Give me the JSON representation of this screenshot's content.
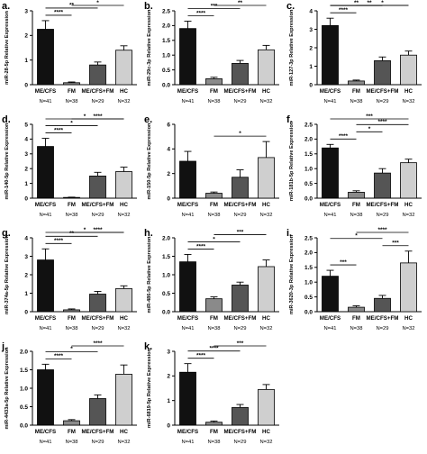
{
  "figure": {
    "categories": [
      "ME/CFS",
      "FM",
      "ME/CFS+FM",
      "HC"
    ],
    "sample_sizes": [
      "N=41",
      "N=38",
      "N=29",
      "N=32"
    ],
    "bar_colors": [
      "#111111",
      "#8a8a8a",
      "#555555",
      "#cfcfcf"
    ]
  },
  "chart_data": [
    {
      "type": "bar",
      "panel": "a.",
      "ylabel": "miR-28-5p Relative Expression",
      "categories": [
        "ME/CFS",
        "FM",
        "ME/CFS+FM",
        "HC"
      ],
      "values": [
        2.25,
        0.08,
        0.8,
        1.4
      ],
      "errors": [
        0.35,
        0.03,
        0.12,
        0.18
      ],
      "ylim": [
        0,
        3
      ],
      "yticks": [
        "0",
        "1",
        "2",
        "3"
      ],
      "significance": [
        {
          "from": 0,
          "to": 1,
          "label": "****"
        },
        {
          "from": 0,
          "to": 2,
          "label": "**"
        },
        {
          "from": 1,
          "to": 3,
          "label": "*"
        }
      ]
    },
    {
      "type": "bar",
      "panel": "b.",
      "ylabel": "miR-29c-3p Relative Expression",
      "categories": [
        "ME/CFS",
        "FM",
        "ME/CFS+FM",
        "HC"
      ],
      "values": [
        1.9,
        0.2,
        0.72,
        1.18
      ],
      "errors": [
        0.25,
        0.05,
        0.1,
        0.15
      ],
      "ylim": [
        0,
        2.5
      ],
      "yticks": [
        "0.0",
        "0.5",
        "1.0",
        "1.5",
        "2.0",
        "2.5"
      ],
      "significance": [
        {
          "from": 0,
          "to": 1,
          "label": "****"
        },
        {
          "from": 0,
          "to": 2,
          "label": "***"
        },
        {
          "from": 1,
          "to": 3,
          "label": "**"
        }
      ]
    },
    {
      "type": "bar",
      "panel": "c.",
      "ylabel": "miR-127-3p Relative Expression",
      "categories": [
        "ME/CFS",
        "FM",
        "ME/CFS+FM",
        "HC"
      ],
      "values": [
        3.2,
        0.2,
        1.3,
        1.6
      ],
      "errors": [
        0.4,
        0.05,
        0.2,
        0.22
      ],
      "ylim": [
        0,
        4
      ],
      "yticks": [
        "0",
        "1",
        "2",
        "3",
        "4"
      ],
      "significance": [
        {
          "from": 0,
          "to": 1,
          "label": "****"
        },
        {
          "from": 0,
          "to": 2,
          "label": "**"
        },
        {
          "from": 0,
          "to": 3,
          "label": "**"
        },
        {
          "from": 1,
          "to": 3,
          "label": "*"
        }
      ]
    },
    {
      "type": "bar",
      "panel": "d.",
      "ylabel": "miR-140-5p Relative Expression",
      "categories": [
        "ME/CFS",
        "FM",
        "ME/CFS+FM",
        "HC"
      ],
      "values": [
        3.5,
        0.05,
        1.5,
        1.8
      ],
      "errors": [
        0.55,
        0.02,
        0.25,
        0.3
      ],
      "ylim": [
        0,
        5
      ],
      "yticks": [
        "0",
        "1",
        "2",
        "3",
        "4",
        "5"
      ],
      "significance": [
        {
          "from": 0,
          "to": 1,
          "label": "****"
        },
        {
          "from": 0,
          "to": 2,
          "label": "*"
        },
        {
          "from": 0,
          "to": 3,
          "label": "*"
        },
        {
          "from": 1,
          "to": 3,
          "label": "****"
        }
      ]
    },
    {
      "type": "bar",
      "panel": "e.",
      "ylabel": "miR-150-5p Relative Expression",
      "categories": [
        "ME/CFS",
        "FM",
        "ME/CFS+FM",
        "HC"
      ],
      "values": [
        3.0,
        0.4,
        1.7,
        3.3
      ],
      "errors": [
        0.8,
        0.1,
        0.6,
        1.3
      ],
      "ylim": [
        0,
        6
      ],
      "yticks": [
        "0",
        "2",
        "4",
        "6"
      ],
      "significance": [
        {
          "from": 1,
          "to": 3,
          "label": "*"
        }
      ]
    },
    {
      "type": "bar",
      "panel": "f.",
      "ylabel": "miR-181b-5p Relative Expression",
      "categories": [
        "ME/CFS",
        "FM",
        "ME/CFS+FM",
        "HC"
      ],
      "values": [
        1.7,
        0.2,
        0.85,
        1.2
      ],
      "errors": [
        0.12,
        0.05,
        0.15,
        0.12
      ],
      "ylim": [
        0,
        2.5
      ],
      "yticks": [
        "0.0",
        "0.5",
        "1.0",
        "1.5",
        "2.0",
        "2.5"
      ],
      "significance": [
        {
          "from": 0,
          "to": 1,
          "label": "****"
        },
        {
          "from": 0,
          "to": 3,
          "label": "***"
        },
        {
          "from": 1,
          "to": 2,
          "label": "*"
        },
        {
          "from": 1,
          "to": 3,
          "label": "****"
        }
      ]
    },
    {
      "type": "bar",
      "panel": "g.",
      "ylabel": "miR-374a-5p Relative Expression",
      "categories": [
        "ME/CFS",
        "FM",
        "ME/CFS+FM",
        "HC"
      ],
      "values": [
        2.8,
        0.1,
        0.95,
        1.25
      ],
      "errors": [
        0.6,
        0.05,
        0.15,
        0.15
      ],
      "ylim": [
        0,
        4
      ],
      "yticks": [
        "0",
        "1",
        "2",
        "3",
        "4"
      ],
      "significance": [
        {
          "from": 0,
          "to": 1,
          "label": "****"
        },
        {
          "from": 0,
          "to": 2,
          "label": "**"
        },
        {
          "from": 0,
          "to": 3,
          "label": "*"
        },
        {
          "from": 1,
          "to": 3,
          "label": "****"
        }
      ]
    },
    {
      "type": "bar",
      "panel": "h.",
      "ylabel": "miR-486-5p Relative Expression",
      "categories": [
        "ME/CFS",
        "FM",
        "ME/CFS+FM",
        "HC"
      ],
      "values": [
        1.35,
        0.35,
        0.72,
        1.22
      ],
      "errors": [
        0.2,
        0.05,
        0.08,
        0.18
      ],
      "ylim": [
        0,
        2.0
      ],
      "yticks": [
        "0.0",
        "0.5",
        "1.0",
        "1.5",
        "2.0"
      ],
      "significance": [
        {
          "from": 0,
          "to": 1,
          "label": "****"
        },
        {
          "from": 0,
          "to": 2,
          "label": "*"
        },
        {
          "from": 1,
          "to": 3,
          "label": "***"
        }
      ]
    },
    {
      "type": "bar",
      "panel": "i.",
      "ylabel": "miR-3620-3p Relative Expression",
      "categories": [
        "ME/CFS",
        "FM",
        "ME/CFS+FM",
        "HC"
      ],
      "values": [
        1.2,
        0.15,
        0.45,
        1.65
      ],
      "errors": [
        0.2,
        0.05,
        0.1,
        0.4
      ],
      "ylim": [
        0,
        2.5
      ],
      "yticks": [
        "0.0",
        "0.5",
        "1.0",
        "1.5",
        "2.0",
        "2.5"
      ],
      "significance": [
        {
          "from": 0,
          "to": 1,
          "label": "***"
        },
        {
          "from": 0,
          "to": 2,
          "label": "*"
        },
        {
          "from": 1,
          "to": 3,
          "label": "****"
        },
        {
          "from": 2,
          "to": 3,
          "label": "***"
        }
      ]
    },
    {
      "type": "bar",
      "panel": "j.",
      "ylabel": "miR-4433a-5p Relative Expression",
      "categories": [
        "ME/CFS",
        "FM",
        "ME/CFS+FM",
        "HC"
      ],
      "values": [
        1.5,
        0.12,
        0.72,
        1.38
      ],
      "errors": [
        0.15,
        0.03,
        0.1,
        0.25
      ],
      "ylim": [
        0,
        2.0
      ],
      "yticks": [
        "0.0",
        "0.5",
        "1.0",
        "1.5",
        "2.0"
      ],
      "significance": [
        {
          "from": 0,
          "to": 1,
          "label": "****"
        },
        {
          "from": 0,
          "to": 2,
          "label": "*"
        },
        {
          "from": 1,
          "to": 3,
          "label": "****"
        }
      ]
    },
    {
      "type": "bar",
      "panel": "k.",
      "ylabel": "miR-6819-5p Relative Expression",
      "categories": [
        "ME/CFS",
        "FM",
        "ME/CFS+FM",
        "HC"
      ],
      "values": [
        2.15,
        0.12,
        0.72,
        1.45
      ],
      "errors": [
        0.35,
        0.05,
        0.12,
        0.2
      ],
      "ylim": [
        0,
        3
      ],
      "yticks": [
        "0",
        "1",
        "2",
        "3"
      ],
      "significance": [
        {
          "from": 0,
          "to": 1,
          "label": "****"
        },
        {
          "from": 0,
          "to": 2,
          "label": "****"
        },
        {
          "from": 1,
          "to": 3,
          "label": "***"
        }
      ]
    }
  ]
}
